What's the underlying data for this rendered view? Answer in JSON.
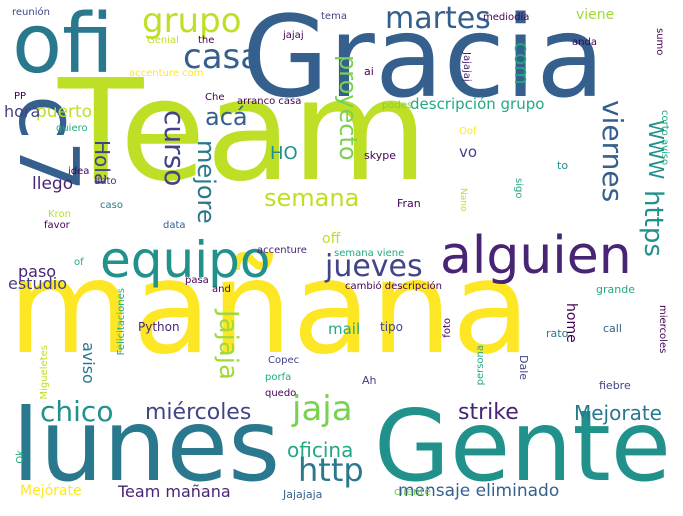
{
  "palette": {
    "yellow": "#fde725",
    "lime": "#bddf26",
    "green": "#7ad151",
    "teal_green": "#22a884",
    "teal": "#21918c",
    "steel": "#2a788e",
    "blue": "#355f8d",
    "indigo": "#414487",
    "purple": "#482475",
    "deep_purple": "#440154"
  },
  "words": [
    {
      "text": "Team",
      "weight": 100,
      "color": "#bddf26",
      "orientation": "horizontal"
    },
    {
      "text": "mañana",
      "weight": 98,
      "color": "#fde725",
      "orientation": "horizontal"
    },
    {
      "text": "Gracia",
      "weight": 88,
      "color": "#355f8d",
      "orientation": "horizontal"
    },
    {
      "text": "Gente",
      "weight": 72,
      "color": "#21918c",
      "orientation": "horizontal"
    },
    {
      "text": "lunes",
      "weight": 70,
      "color": "#2a788e",
      "orientation": "horizontal"
    },
    {
      "text": "ofi",
      "weight": 66,
      "color": "#2a788e",
      "orientation": "horizontal"
    },
    {
      "text": "c7",
      "weight": 62,
      "color": "#355f8d",
      "orientation": "vertical"
    },
    {
      "text": "alguien",
      "weight": 42,
      "color": "#482475",
      "orientation": "horizontal"
    },
    {
      "text": "equipo",
      "weight": 40,
      "color": "#21918c",
      "orientation": "horizontal"
    },
    {
      "text": "grupo",
      "weight": 32,
      "color": "#bddf26",
      "orientation": "horizontal"
    },
    {
      "text": "casa",
      "weight": 30,
      "color": "#355f8d",
      "orientation": "horizontal"
    },
    {
      "text": "jueves",
      "weight": 30,
      "color": "#414487",
      "orientation": "horizontal"
    },
    {
      "text": "jaja",
      "weight": 30,
      "color": "#7ad151",
      "orientation": "horizontal"
    },
    {
      "text": "http",
      "weight": 30,
      "color": "#2a788e",
      "orientation": "horizontal"
    },
    {
      "text": "curso",
      "weight": 28,
      "color": "#414487",
      "orientation": "vertical"
    },
    {
      "text": "martes",
      "weight": 26,
      "color": "#355f8d",
      "orientation": "horizontal"
    },
    {
      "text": "viernes",
      "weight": 26,
      "color": "#355f8d",
      "orientation": "vertical"
    },
    {
      "text": "chico",
      "weight": 26,
      "color": "#21918c",
      "orientation": "horizontal"
    },
    {
      "text": "https",
      "weight": 24,
      "color": "#21918c",
      "orientation": "vertical"
    },
    {
      "text": "Jajaja",
      "weight": 24,
      "color": "#a0da39",
      "orientation": "vertical"
    },
    {
      "text": "proyecto",
      "weight": 22,
      "color": "#7ad151",
      "orientation": "vertical"
    },
    {
      "text": "acá",
      "weight": 22,
      "color": "#355f8d",
      "orientation": "horizontal"
    },
    {
      "text": "semana",
      "weight": 22,
      "color": "#bddf26",
      "orientation": "horizontal"
    },
    {
      "text": "mejore",
      "weight": 22,
      "color": "#2a788e",
      "orientation": "vertical"
    },
    {
      "text": "Hola",
      "weight": 20,
      "color": "#414487",
      "orientation": "vertical"
    },
    {
      "text": "WWW",
      "weight": 20,
      "color": "#21918c",
      "orientation": "vertical"
    },
    {
      "text": "miércoles",
      "weight": 20,
      "color": "#414487",
      "orientation": "horizontal"
    },
    {
      "text": "strike",
      "weight": 20,
      "color": "#482475",
      "orientation": "horizontal"
    },
    {
      "text": "Mejorate",
      "weight": 18,
      "color": "#2a788e",
      "orientation": "horizontal"
    },
    {
      "text": "oficina",
      "weight": 18,
      "color": "#22a884",
      "orientation": "horizontal"
    },
    {
      "text": "com",
      "weight": 18,
      "color": "#22a884",
      "orientation": "vertical"
    },
    {
      "text": "HO",
      "weight": 16,
      "color": "#21918c",
      "orientation": "horizontal"
    },
    {
      "text": "Team mañana",
      "weight": 16,
      "color": "#482475",
      "orientation": "horizontal"
    },
    {
      "text": "mensaje eliminado",
      "weight": 15,
      "color": "#355f8d",
      "orientation": "horizontal"
    },
    {
      "text": "llego",
      "weight": 15,
      "color": "#482475",
      "orientation": "horizontal"
    },
    {
      "text": "puerto",
      "weight": 15,
      "color": "#bddf26",
      "orientation": "horizontal"
    },
    {
      "text": "aviso",
      "weight": 15,
      "color": "#2a788e",
      "orientation": "vertical"
    },
    {
      "text": "hora",
      "weight": 15,
      "color": "#414487",
      "orientation": "horizontal"
    },
    {
      "text": "viene",
      "weight": 13,
      "color": "#a0da39",
      "orientation": "horizontal"
    },
    {
      "text": "descripción grupo",
      "weight": 13,
      "color": "#22a884",
      "orientation": "horizontal"
    },
    {
      "text": "estudio",
      "weight": 13,
      "color": "#414487",
      "orientation": "horizontal"
    },
    {
      "text": "paso",
      "weight": 13,
      "color": "#482475",
      "orientation": "horizontal"
    },
    {
      "text": "mail",
      "weight": 13,
      "color": "#22a884",
      "orientation": "horizontal"
    },
    {
      "text": "home",
      "weight": 13,
      "color": "#440154",
      "orientation": "vertical"
    },
    {
      "text": "vo",
      "weight": 13,
      "color": "#414487",
      "orientation": "horizontal"
    },
    {
      "text": "Mejórate",
      "weight": 12,
      "color": "#fde725",
      "orientation": "horizontal"
    },
    {
      "text": "off",
      "weight": 12,
      "color": "#bddf26",
      "orientation": "horizontal"
    },
    {
      "text": "tipo",
      "weight": 11,
      "color": "#414487",
      "orientation": "horizontal"
    },
    {
      "text": "Python",
      "weight": 11,
      "color": "#482475",
      "orientation": "horizontal"
    },
    {
      "text": "grande",
      "weight": 10,
      "color": "#22a884",
      "orientation": "horizontal"
    },
    {
      "text": "fiebre",
      "weight": 10,
      "color": "#414487",
      "orientation": "horizontal"
    },
    {
      "text": "ai",
      "weight": 10,
      "color": "#440154",
      "orientation": "horizontal"
    },
    {
      "text": "skype",
      "weight": 10,
      "color": "#440154",
      "orientation": "horizontal"
    },
    {
      "text": "Fran",
      "weight": 10,
      "color": "#440154",
      "orientation": "horizontal"
    },
    {
      "text": "rato",
      "weight": 10,
      "color": "#2a788e",
      "orientation": "horizontal"
    },
    {
      "text": "Dale",
      "weight": 10,
      "color": "#414487",
      "orientation": "vertical"
    },
    {
      "text": "call",
      "weight": 10,
      "color": "#355f8d",
      "orientation": "horizontal"
    },
    {
      "text": "Jajajaja",
      "weight": 10,
      "color": "#355f8d",
      "orientation": "horizontal"
    },
    {
      "text": "cliente",
      "weight": 10,
      "color": "#7ad151",
      "orientation": "horizontal"
    },
    {
      "text": "dato",
      "weight": 9,
      "color": "#482475",
      "orientation": "horizontal"
    },
    {
      "text": "idea",
      "weight": 9,
      "color": "#440154",
      "orientation": "horizontal"
    },
    {
      "text": "favor",
      "weight": 9,
      "color": "#440154",
      "orientation": "horizontal"
    },
    {
      "text": "caso",
      "weight": 9,
      "color": "#2a788e",
      "orientation": "horizontal"
    },
    {
      "text": "Kron",
      "weight": 9,
      "color": "#bddf26",
      "orientation": "horizontal"
    },
    {
      "text": "accenture",
      "weight": 9,
      "color": "#482475",
      "orientation": "horizontal"
    },
    {
      "text": "semana viene",
      "weight": 9,
      "color": "#22a884",
      "orientation": "horizontal"
    },
    {
      "text": "cambió descripción",
      "weight": 9,
      "color": "#440154",
      "orientation": "horizontal"
    },
    {
      "text": "pasa",
      "weight": 9,
      "color": "#440154",
      "orientation": "horizontal"
    },
    {
      "text": "and",
      "weight": 9,
      "color": "#440154",
      "orientation": "horizontal"
    },
    {
      "text": "of",
      "weight": 9,
      "color": "#22a884",
      "orientation": "horizontal"
    },
    {
      "text": "data",
      "weight": 9,
      "color": "#355f8d",
      "orientation": "horizontal"
    },
    {
      "text": "arranco casa",
      "weight": 9,
      "color": "#440154",
      "orientation": "horizontal"
    },
    {
      "text": "Che",
      "weight": 9,
      "color": "#440154",
      "orientation": "horizontal"
    },
    {
      "text": "podes",
      "weight": 9,
      "color": "#7ad151",
      "orientation": "horizontal"
    },
    {
      "text": "quiero",
      "weight": 9,
      "color": "#22a884",
      "orientation": "horizontal"
    },
    {
      "text": "PP",
      "weight": 8,
      "color": "#440154",
      "orientation": "horizontal"
    },
    {
      "text": "reunión",
      "weight": 9,
      "color": "#414487",
      "orientation": "horizontal"
    },
    {
      "text": "tema",
      "weight": 9,
      "color": "#414487",
      "orientation": "horizontal"
    },
    {
      "text": "mediodía",
      "weight": 9,
      "color": "#440154",
      "orientation": "horizontal"
    },
    {
      "text": "jajaj",
      "weight": 9,
      "color": "#440154",
      "orientation": "horizontal"
    },
    {
      "text": "Genial",
      "weight": 9,
      "color": "#bddf26",
      "orientation": "horizontal"
    },
    {
      "text": "the",
      "weight": 9,
      "color": "#440154",
      "orientation": "horizontal"
    },
    {
      "text": "accenture com",
      "weight": 9,
      "color": "#fde725",
      "orientation": "horizontal"
    },
    {
      "text": "anda",
      "weight": 9,
      "color": "#440154",
      "orientation": "horizontal"
    },
    {
      "text": "sumo",
      "weight": 9,
      "color": "#440154",
      "orientation": "vertical"
    },
    {
      "text": "corto aviso",
      "weight": 9,
      "color": "#22a884",
      "orientation": "vertical"
    },
    {
      "text": "Jajajaj",
      "weight": 9,
      "color": "#482475",
      "orientation": "vertical"
    },
    {
      "text": "Oof",
      "weight": 9,
      "color": "#fde725",
      "orientation": "horizontal"
    },
    {
      "text": "Nano",
      "weight": 8,
      "color": "#bddf26",
      "orientation": "vertical"
    },
    {
      "text": "sigo",
      "weight": 9,
      "color": "#22a884",
      "orientation": "vertical"
    },
    {
      "text": "to",
      "weight": 9,
      "color": "#21918c",
      "orientation": "horizontal"
    },
    {
      "text": "Copec",
      "weight": 9,
      "color": "#414487",
      "orientation": "horizontal"
    },
    {
      "text": "porfa",
      "weight": 9,
      "color": "#22a884",
      "orientation": "horizontal"
    },
    {
      "text": "quedo",
      "weight": 9,
      "color": "#440154",
      "orientation": "horizontal"
    },
    {
      "text": "Ah",
      "weight": 9,
      "color": "#414487",
      "orientation": "horizontal"
    },
    {
      "text": "foto",
      "weight": 9,
      "color": "#440154",
      "orientation": "vertical"
    },
    {
      "text": "persona",
      "weight": 9,
      "color": "#22a884",
      "orientation": "vertical"
    },
    {
      "text": "miercoles",
      "weight": 9,
      "color": "#440154",
      "orientation": "vertical"
    },
    {
      "text": "Felicitaciones",
      "weight": 9,
      "color": "#22a884",
      "orientation": "vertical"
    },
    {
      "text": "Migueletes",
      "weight": 9,
      "color": "#bddf26",
      "orientation": "vertical"
    },
    {
      "text": "Ok",
      "weight": 9,
      "color": "#22a884",
      "orientation": "vertical"
    }
  ]
}
